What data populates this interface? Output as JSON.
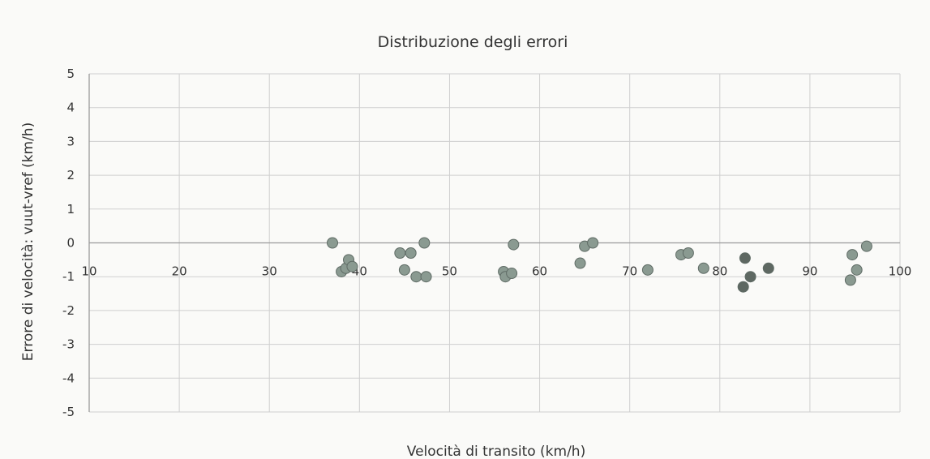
{
  "chart_data": {
    "type": "scatter",
    "title": "Distribuzione degli errori",
    "xlabel": "Velocità di transito (km/h)",
    "ylabel": "Errore di velocità: vuut-vref  (km/h)",
    "xlim": [
      10,
      100
    ],
    "ylim": [
      -5,
      5
    ],
    "x_ticks": [
      10,
      20,
      30,
      40,
      50,
      60,
      70,
      80,
      90,
      100
    ],
    "y_ticks": [
      5,
      4,
      3,
      2,
      1,
      0,
      -1,
      -2,
      -3,
      -4,
      -5
    ],
    "grid": true,
    "legend": "none",
    "point_color": "#8a9a91",
    "point_color_dark": "#5e6862",
    "series": [
      {
        "points": [
          {
            "x": 37.0,
            "y": 0.0
          },
          {
            "x": 38.0,
            "y": -0.85
          },
          {
            "x": 38.5,
            "y": -0.75
          },
          {
            "x": 38.8,
            "y": -0.5
          },
          {
            "x": 39.2,
            "y": -0.7
          },
          {
            "x": 44.5,
            "y": -0.3
          },
          {
            "x": 45.0,
            "y": -0.8
          },
          {
            "x": 45.7,
            "y": -0.3
          },
          {
            "x": 46.3,
            "y": -1.0
          },
          {
            "x": 47.2,
            "y": 0.0
          },
          {
            "x": 47.4,
            "y": -1.0
          },
          {
            "x": 56.0,
            "y": -0.85
          },
          {
            "x": 56.2,
            "y": -1.0
          },
          {
            "x": 56.9,
            "y": -0.9
          },
          {
            "x": 57.1,
            "y": -0.05
          },
          {
            "x": 64.5,
            "y": -0.6
          },
          {
            "x": 65.0,
            "y": -0.1
          },
          {
            "x": 65.9,
            "y": 0.0
          },
          {
            "x": 72.0,
            "y": -0.8
          },
          {
            "x": 75.7,
            "y": -0.35
          },
          {
            "x": 76.5,
            "y": -0.3
          },
          {
            "x": 78.2,
            "y": -0.75
          },
          {
            "x": 82.6,
            "y": -1.3
          },
          {
            "x": 82.8,
            "y": -0.45
          },
          {
            "x": 83.4,
            "y": -1.0
          },
          {
            "x": 85.4,
            "y": -0.75
          },
          {
            "x": 94.5,
            "y": -1.1
          },
          {
            "x": 94.7,
            "y": -0.35
          },
          {
            "x": 95.2,
            "y": -0.8
          },
          {
            "x": 96.3,
            "y": -0.1
          }
        ]
      }
    ]
  }
}
